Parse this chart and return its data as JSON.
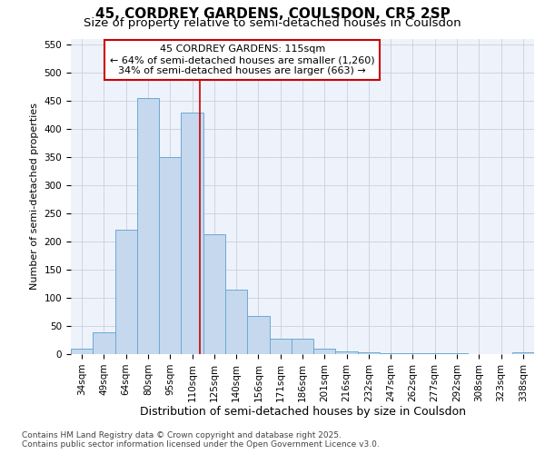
{
  "title_line1": "45, CORDREY GARDENS, COULSDON, CR5 2SP",
  "title_line2": "Size of property relative to semi-detached houses in Coulsdon",
  "xlabel": "Distribution of semi-detached houses by size in Coulsdon",
  "ylabel": "Number of semi-detached properties",
  "categories": [
    "34sqm",
    "49sqm",
    "64sqm",
    "80sqm",
    "95sqm",
    "110sqm",
    "125sqm",
    "140sqm",
    "156sqm",
    "171sqm",
    "186sqm",
    "201sqm",
    "216sqm",
    "232sqm",
    "247sqm",
    "262sqm",
    "277sqm",
    "292sqm",
    "308sqm",
    "323sqm",
    "338sqm"
  ],
  "values": [
    10,
    38,
    220,
    455,
    350,
    428,
    213,
    115,
    68,
    27,
    27,
    9,
    5,
    4,
    2,
    1,
    1,
    1,
    0,
    0,
    4
  ],
  "bar_color": "#c5d8ee",
  "bar_edge_color": "#6aaad4",
  "vline_x_index": 5.33,
  "vline_color": "#cc0000",
  "annotation_title": "45 CORDREY GARDENS: 115sqm",
  "annotation_line1": "← 64% of semi-detached houses are smaller (1,260)",
  "annotation_line2": "34% of semi-detached houses are larger (663) →",
  "annotation_box_color": "#cc0000",
  "ylim": [
    0,
    560
  ],
  "yticks": [
    0,
    50,
    100,
    150,
    200,
    250,
    300,
    350,
    400,
    450,
    500,
    550
  ],
  "title_fontsize": 11,
  "subtitle_fontsize": 9.5,
  "xlabel_fontsize": 9,
  "ylabel_fontsize": 8,
  "annotation_fontsize": 8,
  "tick_fontsize": 7.5,
  "footer_line1": "Contains HM Land Registry data © Crown copyright and database right 2025.",
  "footer_line2": "Contains public sector information licensed under the Open Government Licence v3.0.",
  "background_color": "#eef2fa",
  "grid_color": "#c8d0e0",
  "footer_fontsize": 6.5
}
